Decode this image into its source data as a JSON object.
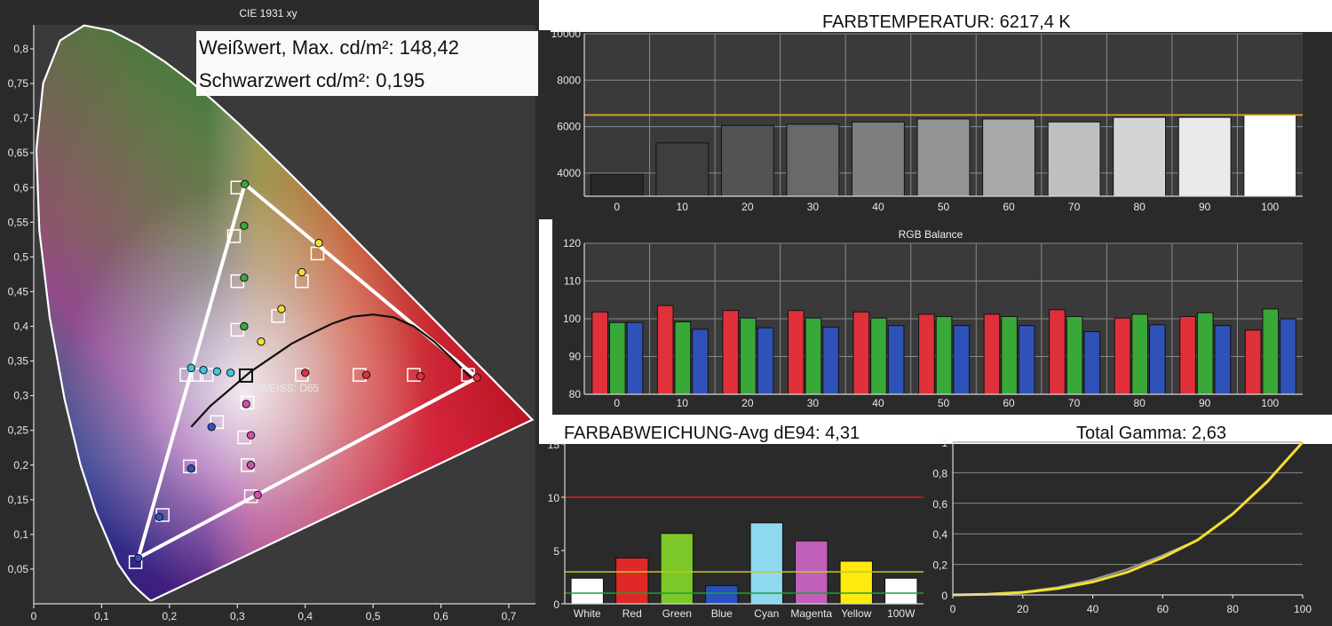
{
  "cie": {
    "title": "CIE 1931 xy",
    "luminance_white": "Weißwert, Max. cd/m²: 148,42",
    "luminance_black": "Schwarzwert cd/m²: 0,195",
    "white_label": "WEISS: D65",
    "x_ticks": [
      "0",
      "0,1",
      "0,2",
      "0,3",
      "0,4",
      "0,5",
      "0,6",
      "0,7"
    ],
    "y_ticks": [
      "0,05",
      "0,1",
      "0,15",
      "0,2",
      "0,25",
      "0,3",
      "0,35",
      "0,4",
      "0,45",
      "0,5",
      "0,55",
      "0,6",
      "0,65",
      "0,7",
      "0,75",
      "0,8"
    ]
  },
  "colortemp": {
    "title": "FARBTEMPERATUR: 6217,4 K",
    "y_ticks": [
      "4000",
      "6000",
      "8000",
      "10000"
    ],
    "categories": [
      "0",
      "10",
      "20",
      "30",
      "40",
      "50",
      "60",
      "70",
      "80",
      "90",
      "100"
    ]
  },
  "rgb": {
    "title": "RGB Balance",
    "y_ticks": [
      "80",
      "90",
      "100",
      "110",
      "120"
    ],
    "categories": [
      "0",
      "10",
      "20",
      "30",
      "40",
      "50",
      "60",
      "70",
      "80",
      "90",
      "100"
    ]
  },
  "deltae": {
    "title": "FARBABWEICHUNG-Avg dE94: 4,31",
    "y_ticks": [
      "0",
      "5",
      "10",
      "15"
    ],
    "categories": [
      "White",
      "Red",
      "Green",
      "Blue",
      "Cyan",
      "Magenta",
      "Yellow",
      "100W"
    ]
  },
  "gamma": {
    "title": "Total Gamma: 2,63",
    "x_ticks": [
      "0",
      "20",
      "40",
      "60",
      "80",
      "100"
    ],
    "y_ticks": [
      "0",
      "0,2",
      "0,4",
      "0,6",
      "0,8",
      "1"
    ]
  },
  "chart_data": [
    {
      "type": "scatter",
      "title": "CIE 1931 xy",
      "xlim": [
        0,
        0.75
      ],
      "ylim": [
        0,
        0.85
      ],
      "white_point": {
        "label": "WEISS: D65",
        "x": 0.3127,
        "y": 0.329
      },
      "target_gamut": [
        [
          0.64,
          0.33
        ],
        [
          0.3,
          0.6
        ],
        [
          0.15,
          0.06
        ]
      ],
      "measured_gamut": [
        [
          0.653,
          0.326
        ],
        [
          0.311,
          0.605
        ],
        [
          0.154,
          0.066
        ]
      ],
      "target_points": [
        {
          "x": 0.64,
          "y": 0.33,
          "c": "red"
        },
        {
          "x": 0.56,
          "y": 0.33,
          "c": "red"
        },
        {
          "x": 0.48,
          "y": 0.33,
          "c": "red"
        },
        {
          "x": 0.395,
          "y": 0.33,
          "c": "red"
        },
        {
          "x": 0.3,
          "y": 0.6,
          "c": "green"
        },
        {
          "x": 0.295,
          "y": 0.53,
          "c": "green"
        },
        {
          "x": 0.3,
          "y": 0.465,
          "c": "green"
        },
        {
          "x": 0.3,
          "y": 0.395,
          "c": "green"
        },
        {
          "x": 0.15,
          "y": 0.06,
          "c": "blue"
        },
        {
          "x": 0.19,
          "y": 0.128,
          "c": "blue"
        },
        {
          "x": 0.23,
          "y": 0.198,
          "c": "blue"
        },
        {
          "x": 0.27,
          "y": 0.262,
          "c": "blue"
        },
        {
          "x": 0.225,
          "y": 0.33,
          "c": "cyan"
        },
        {
          "x": 0.24,
          "y": 0.33,
          "c": "cyan"
        },
        {
          "x": 0.255,
          "y": 0.33,
          "c": "cyan"
        },
        {
          "x": 0.32,
          "y": 0.155,
          "c": "magenta"
        },
        {
          "x": 0.315,
          "y": 0.2,
          "c": "magenta"
        },
        {
          "x": 0.31,
          "y": 0.24,
          "c": "magenta"
        },
        {
          "x": 0.315,
          "y": 0.29,
          "c": "magenta"
        },
        {
          "x": 0.418,
          "y": 0.505,
          "c": "yellow"
        },
        {
          "x": 0.395,
          "y": 0.465,
          "c": "yellow"
        },
        {
          "x": 0.36,
          "y": 0.415,
          "c": "yellow"
        }
      ],
      "measured_points": [
        {
          "x": 0.653,
          "y": 0.326,
          "c": "red"
        },
        {
          "x": 0.57,
          "y": 0.328,
          "c": "red"
        },
        {
          "x": 0.49,
          "y": 0.33,
          "c": "red"
        },
        {
          "x": 0.4,
          "y": 0.333,
          "c": "red"
        },
        {
          "x": 0.311,
          "y": 0.605,
          "c": "green"
        },
        {
          "x": 0.31,
          "y": 0.545,
          "c": "green"
        },
        {
          "x": 0.31,
          "y": 0.47,
          "c": "green"
        },
        {
          "x": 0.31,
          "y": 0.4,
          "c": "green"
        },
        {
          "x": 0.154,
          "y": 0.066,
          "c": "blue"
        },
        {
          "x": 0.185,
          "y": 0.125,
          "c": "blue"
        },
        {
          "x": 0.232,
          "y": 0.195,
          "c": "blue"
        },
        {
          "x": 0.262,
          "y": 0.255,
          "c": "blue"
        },
        {
          "x": 0.232,
          "y": 0.34,
          "c": "cyan"
        },
        {
          "x": 0.25,
          "y": 0.337,
          "c": "cyan"
        },
        {
          "x": 0.27,
          "y": 0.335,
          "c": "cyan"
        },
        {
          "x": 0.29,
          "y": 0.333,
          "c": "cyan"
        },
        {
          "x": 0.33,
          "y": 0.157,
          "c": "magenta"
        },
        {
          "x": 0.32,
          "y": 0.2,
          "c": "magenta"
        },
        {
          "x": 0.32,
          "y": 0.243,
          "c": "magenta"
        },
        {
          "x": 0.313,
          "y": 0.288,
          "c": "magenta"
        },
        {
          "x": 0.42,
          "y": 0.52,
          "c": "yellow"
        },
        {
          "x": 0.395,
          "y": 0.478,
          "c": "yellow"
        },
        {
          "x": 0.365,
          "y": 0.425,
          "c": "yellow"
        },
        {
          "x": 0.335,
          "y": 0.378,
          "c": "yellow"
        }
      ]
    },
    {
      "type": "bar",
      "title": "FARBTEMPERATUR: 6217,4 K",
      "categories": [
        "0",
        "10",
        "20",
        "30",
        "40",
        "50",
        "60",
        "70",
        "80",
        "90",
        "100"
      ],
      "values": [
        3950,
        5300,
        6050,
        6100,
        6200,
        6330,
        6330,
        6200,
        6400,
        6400,
        6500
      ],
      "target": 6500,
      "ylim": [
        3000,
        10000
      ]
    },
    {
      "type": "bar",
      "title": "RGB Balance",
      "categories": [
        "0",
        "10",
        "20",
        "30",
        "40",
        "50",
        "60",
        "70",
        "80",
        "90",
        "100"
      ],
      "series": [
        {
          "name": "R",
          "values": [
            101.8,
            103.5,
            102.2,
            102.2,
            101.8,
            101.2,
            101.2,
            102.4,
            100.2,
            100.6,
            97.0
          ]
        },
        {
          "name": "G",
          "values": [
            99.0,
            99.2,
            100.2,
            100.2,
            100.2,
            100.6,
            100.6,
            100.6,
            101.2,
            101.6,
            102.6
          ]
        },
        {
          "name": "B",
          "values": [
            99.0,
            97.2,
            97.6,
            97.8,
            98.2,
            98.2,
            98.2,
            96.6,
            98.4,
            98.2,
            100.0
          ]
        }
      ],
      "ylim": [
        80,
        120
      ]
    },
    {
      "type": "bar",
      "title": "FARBABWEICHUNG-Avg dE94: 4,31",
      "categories": [
        "White",
        "Red",
        "Green",
        "Blue",
        "Cyan",
        "Magenta",
        "Yellow",
        "100W"
      ],
      "values": [
        2.4,
        4.3,
        6.6,
        1.7,
        7.6,
        5.9,
        4.0,
        2.4
      ],
      "thresholds": [
        10,
        3,
        1
      ],
      "ylim": [
        0,
        15
      ]
    },
    {
      "type": "line",
      "title": "Total Gamma: 2,63",
      "xlim": [
        0,
        100
      ],
      "ylim": [
        0,
        1
      ],
      "series": [
        {
          "values": [
            [
              0,
              0
            ],
            [
              10,
              0.005
            ],
            [
              20,
              0.02
            ],
            [
              30,
              0.05
            ],
            [
              40,
              0.1
            ],
            [
              50,
              0.17
            ],
            [
              60,
              0.26
            ],
            [
              70,
              0.36
            ],
            [
              80,
              0.53
            ],
            [
              90,
              0.74
            ],
            [
              100,
              1.0
            ]
          ]
        },
        {
          "values": [
            [
              0,
              0
            ],
            [
              10,
              0.004
            ],
            [
              20,
              0.017
            ],
            [
              30,
              0.042
            ],
            [
              40,
              0.085
            ],
            [
              50,
              0.15
            ],
            [
              60,
              0.245
            ],
            [
              70,
              0.36
            ],
            [
              80,
              0.53
            ],
            [
              90,
              0.745
            ],
            [
              100,
              1.0
            ]
          ]
        }
      ]
    }
  ],
  "colors": {
    "panel": "#2a2a2a",
    "target_line": "#e0b020",
    "red_bar": "#e0303a",
    "green_bar": "#38a838",
    "blue_bar": "#2e52b8",
    "gamma_measured": "#9a9a9a",
    "gamma_target": "#f0e030"
  }
}
